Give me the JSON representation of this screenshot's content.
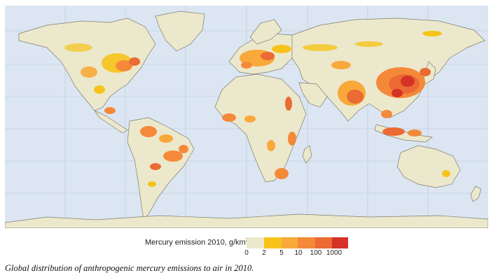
{
  "map": {
    "ocean_color": "#dce6f2",
    "land_color": "#ece8cc",
    "border_color": "#8a8a7a",
    "graticule": true
  },
  "legend": {
    "title_main": "Mercury emission 2010, g/km",
    "title_sup": "2",
    "bins": [
      {
        "from": "0",
        "to": "2",
        "color": "#ece8cc"
      },
      {
        "from": "2",
        "to": "5",
        "color": "#f7c31b"
      },
      {
        "from": "5",
        "to": "10",
        "color": "#f8a93a"
      },
      {
        "from": "10",
        "to": "100",
        "color": "#f5893a"
      },
      {
        "from": "100",
        "to": "1000",
        "color": "#ec6a33"
      },
      {
        "from": "1000",
        "to": "",
        "color": "#d63227"
      }
    ],
    "tick_labels": [
      "0",
      "2",
      "5",
      "10",
      "100",
      "1000"
    ]
  },
  "caption": "Global distribution of anthropogenic mercury emissions to air in 2010."
}
